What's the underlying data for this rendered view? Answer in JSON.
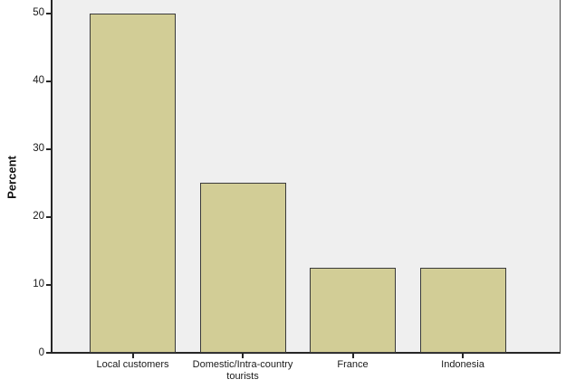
{
  "chart_data": {
    "type": "bar",
    "categories": [
      "Local customers",
      "Domestic/Intra-country tourists",
      "France",
      "Indonesia"
    ],
    "values": [
      50,
      25,
      12.5,
      12.5
    ],
    "title": "",
    "xlabel": "",
    "ylabel": "Percent",
    "ylim": [
      0,
      52
    ],
    "yticks": [
      0,
      10,
      20,
      30,
      40,
      50
    ],
    "grid": false,
    "legend": false,
    "colors": {
      "bar_fill": "#D2CD96",
      "bar_border": "#3A3A3A",
      "plot_background": "#EFEFEF",
      "outer_background": "#FFFFFF",
      "axis_line": "#262626",
      "text": "#1A1A1A"
    }
  }
}
